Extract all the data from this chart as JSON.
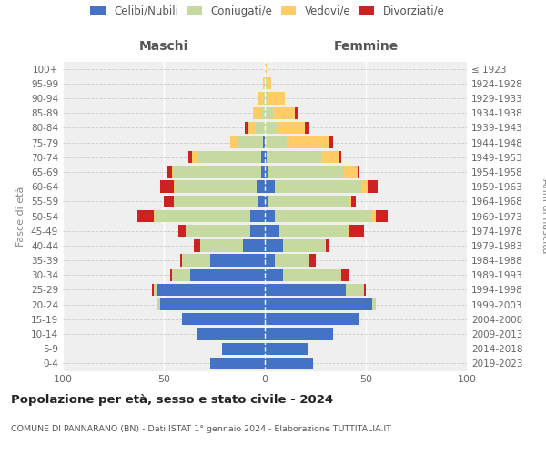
{
  "age_groups": [
    "0-4",
    "5-9",
    "10-14",
    "15-19",
    "20-24",
    "25-29",
    "30-34",
    "35-39",
    "40-44",
    "45-49",
    "50-54",
    "55-59",
    "60-64",
    "65-69",
    "70-74",
    "75-79",
    "80-84",
    "85-89",
    "90-94",
    "95-99",
    "100+"
  ],
  "birth_years": [
    "2019-2023",
    "2014-2018",
    "2009-2013",
    "2004-2008",
    "1999-2003",
    "1994-1998",
    "1989-1993",
    "1984-1988",
    "1979-1983",
    "1974-1978",
    "1969-1973",
    "1964-1968",
    "1959-1963",
    "1954-1958",
    "1949-1953",
    "1944-1948",
    "1939-1943",
    "1934-1938",
    "1929-1933",
    "1924-1928",
    "≤ 1923"
  ],
  "colors": {
    "celibe": "#4472C4",
    "coniugato": "#C5D9A0",
    "vedovo": "#FFCC66",
    "divorziato": "#CC2222"
  },
  "maschi_celibe": [
    27,
    21,
    34,
    41,
    52,
    53,
    37,
    27,
    11,
    7,
    7,
    3,
    4,
    2,
    2,
    1,
    0,
    0,
    0,
    0,
    0
  ],
  "maschi_coniugato": [
    0,
    0,
    0,
    0,
    1,
    2,
    9,
    14,
    21,
    32,
    47,
    42,
    40,
    43,
    32,
    13,
    5,
    2,
    1,
    0,
    0
  ],
  "maschi_vedovo": [
    0,
    0,
    0,
    0,
    0,
    0,
    0,
    0,
    0,
    0,
    1,
    0,
    1,
    1,
    2,
    3,
    3,
    4,
    2,
    1,
    0
  ],
  "maschi_divorziato": [
    0,
    0,
    0,
    0,
    0,
    1,
    1,
    1,
    3,
    4,
    8,
    5,
    7,
    2,
    2,
    0,
    2,
    0,
    0,
    0,
    0
  ],
  "femmine_nubile": [
    24,
    21,
    34,
    47,
    53,
    40,
    9,
    5,
    9,
    7,
    5,
    2,
    5,
    2,
    1,
    0,
    0,
    0,
    0,
    0,
    0
  ],
  "femmine_coniugata": [
    0,
    0,
    0,
    0,
    2,
    9,
    29,
    17,
    21,
    34,
    48,
    40,
    43,
    37,
    27,
    11,
    6,
    4,
    2,
    1,
    0
  ],
  "femmine_vedova": [
    0,
    0,
    0,
    0,
    0,
    0,
    0,
    0,
    0,
    1,
    2,
    1,
    3,
    7,
    9,
    21,
    14,
    11,
    8,
    2,
    1
  ],
  "femmine_divorziata": [
    0,
    0,
    0,
    0,
    0,
    1,
    4,
    3,
    2,
    7,
    6,
    2,
    5,
    1,
    1,
    2,
    2,
    1,
    0,
    0,
    0
  ],
  "xlim": 100,
  "title": "Popolazione per età, sesso e stato civile - 2024",
  "subtitle": "COMUNE DI PANNARANO (BN) - Dati ISTAT 1° gennaio 2024 - Elaborazione TUTTITALIA.IT",
  "ylabel_left": "Fasce di età",
  "ylabel_right": "Anni di nascita",
  "label_maschi": "Maschi",
  "label_femmine": "Femmine",
  "legend": [
    "Celibi/Nubili",
    "Coniugati/e",
    "Vedovi/e",
    "Divorziati/e"
  ]
}
